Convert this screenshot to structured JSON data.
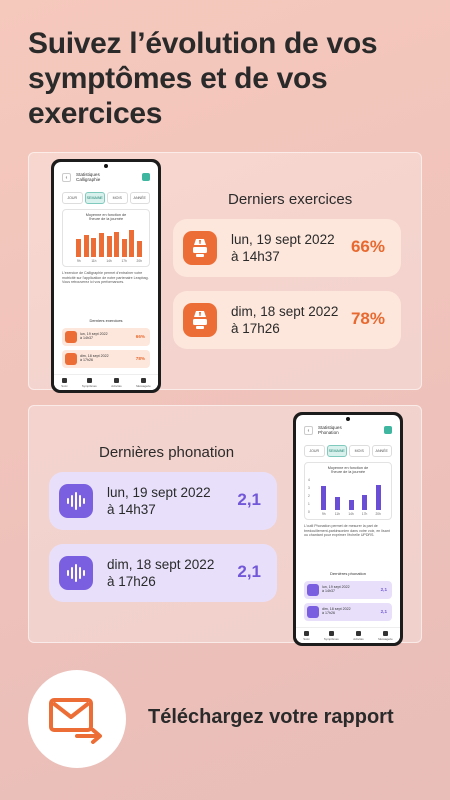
{
  "headline": "Suivez l’évolution de vos symptômes et de vos exercices",
  "exercises_section": {
    "title": "Derniers exercices",
    "items": [
      {
        "date_line1": "lun, 19 sept 2022",
        "date_line2": "à 14h37",
        "value": "66%"
      },
      {
        "date_line1": "dim, 18 sept 2022",
        "date_line2": "à 17h26",
        "value": "78%"
      }
    ]
  },
  "phonation_section": {
    "title": "Dernières phonation",
    "items": [
      {
        "date_line1": "lun, 19 sept 2022",
        "date_line2": "à 14h37",
        "value": "2,1"
      },
      {
        "date_line1": "dim, 18 sept 2022",
        "date_line2": "à 17h26",
        "value": "2,1"
      }
    ]
  },
  "phone1": {
    "title_line1": "Statistiques",
    "title_line2": "Calligraphie",
    "tabs": [
      "JOUR",
      "SEMAINE",
      "MOIS",
      "ANNÉE"
    ],
    "active_tab": "SEMAINE",
    "chart_title_line1": "Moyenne en fonction de",
    "chart_title_line2": "l'heure de la journée",
    "description": "L'exercice de Calligraphie permet d'entraîner votre motricité sur l'application de notre partenaire Leapbag. Vous retrouverez ici vos performances.",
    "subtitle": "Derniers exercices",
    "items": [
      {
        "date_line1": "lun, 19 sept 2022",
        "date_line2": "à 14h37",
        "value": "66%"
      },
      {
        "date_line1": "dim, 18 sept 2022",
        "date_line2": "à 17h26",
        "value": "78%"
      }
    ],
    "nav": [
      "Suivi",
      "Symptômes",
      "Activités",
      "Messagerie"
    ]
  },
  "phone2": {
    "title_line1": "Statistiques",
    "title_line2": "Phonation",
    "tabs": [
      "JOUR",
      "SEMAINE",
      "MOIS",
      "ANNÉE"
    ],
    "active_tab": "SEMAINE",
    "chart_title_line1": "Moyenne en fonction de",
    "chart_title_line2": "l'heure de la journée",
    "y_ticks": [
      "4",
      "3",
      "2",
      "1",
      "0"
    ],
    "description": "L'outil Phonation permet de mesurer la part de bredouillement-parkinsonien dans votre voix, en lisant ou chantant pour exprimer l'échelle UPDRS.",
    "subtitle": "Dernières phonation",
    "items": [
      {
        "date_line1": "lun, 19 sept 2022",
        "date_line2": "à 14h37",
        "value": "2,1"
      },
      {
        "date_line1": "dim, 18 sept 2022",
        "date_line2": "à 17h26",
        "value": "2,1"
      }
    ],
    "nav": [
      "Suivi",
      "Symptômes",
      "Activités",
      "Messagerie"
    ]
  },
  "chart_data": [
    {
      "type": "bar",
      "title": "Moyenne en fonction de l'heure de la journée",
      "categories": [
        "9h",
        "",
        "11h",
        "",
        "14h",
        "",
        "17h",
        "",
        "20h"
      ],
      "values": [
        60,
        75,
        65,
        80,
        70,
        85,
        60,
        90,
        55
      ],
      "ylim": [
        0,
        100
      ],
      "color": "#ec6d35"
    },
    {
      "type": "bar",
      "title": "Moyenne en fonction de l'heure de la journée",
      "categories": [
        "9h",
        "11h",
        "14h",
        "17h",
        "20h"
      ],
      "values": [
        3.2,
        1.8,
        1.4,
        2.0,
        3.4
      ],
      "ylim": [
        0,
        4
      ],
      "color": "#6a4fd6"
    }
  ],
  "download_text": "Téléchargez votre rapport",
  "colors": {
    "orange": "#ec6d35",
    "purple": "#7a5fe0",
    "teal": "#3fb7a0"
  }
}
